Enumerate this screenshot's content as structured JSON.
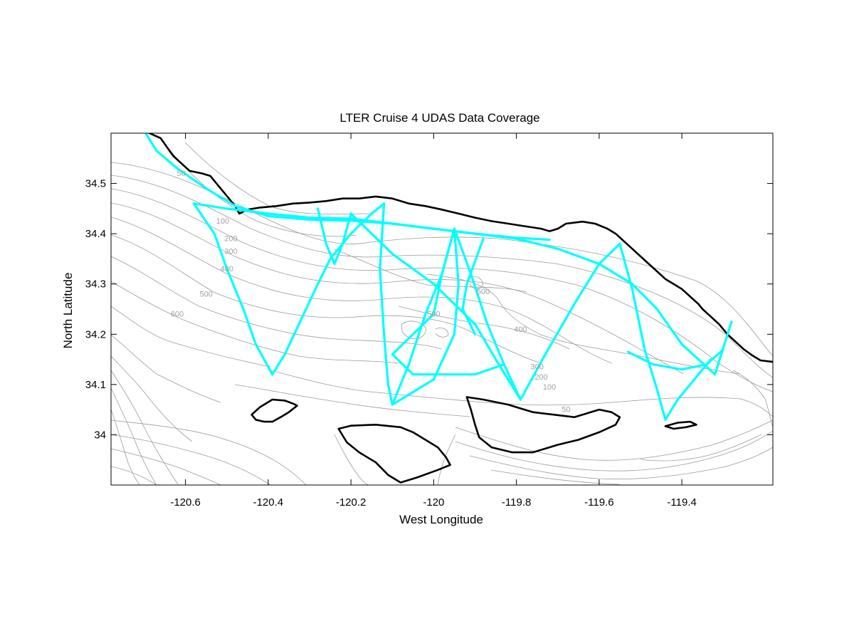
{
  "chart_data": {
    "type": "map",
    "title": "LTER Cruise 4 UDAS Data Coverage",
    "xlabel": "West Longitude",
    "ylabel": "North Latitude",
    "xlim": [
      -120.78,
      -119.18
    ],
    "ylim": [
      33.9,
      34.6
    ],
    "x_ticks": [
      {
        "value": -120.6,
        "label": "-120.6"
      },
      {
        "value": -120.4,
        "label": "-120.4"
      },
      {
        "value": -120.2,
        "label": "-120.2"
      },
      {
        "value": -120.0,
        "label": "-120"
      },
      {
        "value": -119.8,
        "label": "-119.8"
      },
      {
        "value": -119.6,
        "label": "-119.6"
      },
      {
        "value": -119.4,
        "label": "-119.4"
      }
    ],
    "y_ticks": [
      {
        "value": 34.0,
        "label": "34"
      },
      {
        "value": 34.1,
        "label": "34.1"
      },
      {
        "value": 34.2,
        "label": "34.2"
      },
      {
        "value": 34.3,
        "label": "34.3"
      },
      {
        "value": 34.4,
        "label": "34.4"
      },
      {
        "value": 34.5,
        "label": "34.5"
      }
    ],
    "contour_labels": [
      {
        "text": "50",
        "lon": -120.61,
        "lat": 34.515
      },
      {
        "text": "100",
        "lon": -120.51,
        "lat": 34.42
      },
      {
        "text": "200",
        "lon": -120.49,
        "lat": 34.385
      },
      {
        "text": "300",
        "lon": -120.49,
        "lat": 34.36
      },
      {
        "text": "400",
        "lon": -120.5,
        "lat": 34.325
      },
      {
        "text": "500",
        "lon": -120.55,
        "lat": 34.275
      },
      {
        "text": "600",
        "lon": -120.62,
        "lat": 34.235
      },
      {
        "text": "500",
        "lon": -119.88,
        "lat": 34.28
      },
      {
        "text": "500",
        "lon": -120.0,
        "lat": 34.235
      },
      {
        "text": "400",
        "lon": -119.79,
        "lat": 34.205
      },
      {
        "text": "300",
        "lon": -119.75,
        "lat": 34.13
      },
      {
        "text": "200",
        "lon": -119.74,
        "lat": 34.11
      },
      {
        "text": "100",
        "lon": -119.72,
        "lat": 34.09
      },
      {
        "text": "50",
        "lon": -119.68,
        "lat": 34.045
      }
    ],
    "coastline": [
      [
        -120.7,
        34.605
      ],
      [
        -120.66,
        34.59
      ],
      [
        -120.63,
        34.555
      ],
      [
        -120.61,
        34.54
      ],
      [
        -120.59,
        34.525
      ],
      [
        -120.56,
        34.52
      ],
      [
        -120.54,
        34.515
      ],
      [
        -120.52,
        34.495
      ],
      [
        -120.5,
        34.475
      ],
      [
        -120.48,
        34.455
      ],
      [
        -120.47,
        34.44
      ],
      [
        -120.45,
        34.448
      ],
      [
        -120.42,
        34.452
      ],
      [
        -120.38,
        34.455
      ],
      [
        -120.34,
        34.46
      ],
      [
        -120.3,
        34.462
      ],
      [
        -120.26,
        34.465
      ],
      [
        -120.22,
        34.47
      ],
      [
        -120.18,
        34.47
      ],
      [
        -120.14,
        34.474
      ],
      [
        -120.1,
        34.47
      ],
      [
        -120.06,
        34.46
      ],
      [
        -120.02,
        34.455
      ],
      [
        -119.98,
        34.448
      ],
      [
        -119.94,
        34.44
      ],
      [
        -119.9,
        34.432
      ],
      [
        -119.86,
        34.425
      ],
      [
        -119.82,
        34.42
      ],
      [
        -119.78,
        34.415
      ],
      [
        -119.74,
        34.41
      ],
      [
        -119.72,
        34.405
      ],
      [
        -119.7,
        34.41
      ],
      [
        -119.68,
        34.42
      ],
      [
        -119.64,
        34.424
      ],
      [
        -119.61,
        34.42
      ],
      [
        -119.58,
        34.41
      ],
      [
        -119.56,
        34.4
      ],
      [
        -119.54,
        34.385
      ],
      [
        -119.52,
        34.37
      ],
      [
        -119.5,
        34.355
      ],
      [
        -119.48,
        34.34
      ],
      [
        -119.46,
        34.325
      ],
      [
        -119.44,
        34.31
      ],
      [
        -119.42,
        34.3
      ],
      [
        -119.4,
        34.29
      ],
      [
        -119.38,
        34.275
      ],
      [
        -119.36,
        34.26
      ],
      [
        -119.35,
        34.25
      ],
      [
        -119.33,
        34.235
      ],
      [
        -119.31,
        34.22
      ],
      [
        -119.29,
        34.2
      ],
      [
        -119.27,
        34.185
      ],
      [
        -119.25,
        34.17
      ],
      [
        -119.23,
        34.158
      ],
      [
        -119.21,
        34.148
      ],
      [
        -119.18,
        34.145
      ]
    ],
    "islands": [
      [
        [
          -120.44,
          34.04
        ],
        [
          -120.42,
          34.055
        ],
        [
          -120.39,
          34.07
        ],
        [
          -120.36,
          34.068
        ],
        [
          -120.34,
          34.062
        ],
        [
          -120.33,
          34.058
        ],
        [
          -120.35,
          34.045
        ],
        [
          -120.37,
          34.035
        ],
        [
          -120.39,
          34.026
        ],
        [
          -120.41,
          34.026
        ],
        [
          -120.43,
          34.03
        ],
        [
          -120.44,
          34.04
        ]
      ],
      [
        [
          -120.23,
          34.012
        ],
        [
          -120.2,
          34.018
        ],
        [
          -120.14,
          34.02
        ],
        [
          -120.08,
          34.015
        ],
        [
          -120.05,
          34.005
        ],
        [
          -120.02,
          33.99
        ],
        [
          -119.99,
          33.975
        ],
        [
          -119.97,
          33.955
        ],
        [
          -119.96,
          33.94
        ],
        [
          -119.99,
          33.93
        ],
        [
          -120.04,
          33.915
        ],
        [
          -120.08,
          33.905
        ],
        [
          -120.11,
          33.92
        ],
        [
          -120.14,
          33.945
        ],
        [
          -120.18,
          33.965
        ],
        [
          -120.21,
          33.985
        ],
        [
          -120.23,
          34.012
        ]
      ],
      [
        [
          -119.92,
          34.075
        ],
        [
          -119.88,
          34.07
        ],
        [
          -119.82,
          34.06
        ],
        [
          -119.76,
          34.045
        ],
        [
          -119.71,
          34.04
        ],
        [
          -119.66,
          34.035
        ],
        [
          -119.6,
          34.05
        ],
        [
          -119.57,
          34.045
        ],
        [
          -119.55,
          34.035
        ],
        [
          -119.56,
          34.02
        ],
        [
          -119.6,
          34.005
        ],
        [
          -119.65,
          33.99
        ],
        [
          -119.7,
          33.98
        ],
        [
          -119.76,
          33.965
        ],
        [
          -119.81,
          33.965
        ],
        [
          -119.86,
          33.975
        ],
        [
          -119.89,
          33.995
        ],
        [
          -119.9,
          34.02
        ],
        [
          -119.91,
          34.05
        ],
        [
          -119.92,
          34.075
        ]
      ],
      [
        [
          -119.44,
          34.017
        ],
        [
          -119.42,
          34.012
        ],
        [
          -119.39,
          34.015
        ],
        [
          -119.365,
          34.02
        ],
        [
          -119.38,
          34.026
        ],
        [
          -119.41,
          34.024
        ],
        [
          -119.44,
          34.017
        ]
      ]
    ],
    "ship_tracks": [
      [
        [
          -120.7,
          34.605
        ],
        [
          -120.67,
          34.565
        ],
        [
          -120.62,
          34.53
        ],
        [
          -120.55,
          34.49
        ],
        [
          -120.48,
          34.455
        ],
        [
          -120.4,
          34.435
        ],
        [
          -120.3,
          34.428
        ],
        [
          -120.2,
          34.426
        ],
        [
          -120.1,
          34.42
        ],
        [
          -120.0,
          34.41
        ],
        [
          -119.9,
          34.4
        ],
        [
          -119.8,
          34.392
        ],
        [
          -119.72,
          34.388
        ]
      ],
      [
        [
          -120.58,
          34.46
        ],
        [
          -120.5,
          34.45
        ],
        [
          -120.4,
          34.44
        ],
        [
          -120.3,
          34.432
        ],
        [
          -120.2,
          34.43
        ],
        [
          -120.1,
          34.42
        ],
        [
          -120.0,
          34.41
        ],
        [
          -119.9,
          34.4
        ],
        [
          -119.8,
          34.39
        ],
        [
          -119.7,
          34.37
        ],
        [
          -119.6,
          34.34
        ],
        [
          -119.52,
          34.3
        ],
        [
          -119.46,
          34.25
        ],
        [
          -119.4,
          34.18
        ],
        [
          -119.36,
          34.15
        ],
        [
          -119.32,
          34.12
        ],
        [
          -119.28,
          34.225
        ]
      ],
      [
        [
          -120.58,
          34.46
        ],
        [
          -120.53,
          34.4
        ],
        [
          -120.5,
          34.33
        ],
        [
          -120.46,
          34.25
        ],
        [
          -120.43,
          34.18
        ],
        [
          -120.39,
          34.12
        ],
        [
          -120.36,
          34.16
        ],
        [
          -120.32,
          34.23
        ],
        [
          -120.28,
          34.3
        ],
        [
          -120.25,
          34.35
        ],
        [
          -120.2,
          34.4
        ],
        [
          -120.15,
          34.44
        ],
        [
          -120.12,
          34.46
        ]
      ],
      [
        [
          -120.28,
          34.45
        ],
        [
          -120.26,
          34.38
        ],
        [
          -120.24,
          34.34
        ],
        [
          -120.22,
          34.38
        ],
        [
          -120.2,
          34.44
        ]
      ],
      [
        [
          -120.12,
          34.46
        ],
        [
          -120.13,
          34.33
        ],
        [
          -120.12,
          34.2
        ],
        [
          -120.11,
          34.1
        ],
        [
          -120.1,
          34.06
        ],
        [
          -120.0,
          34.11
        ],
        [
          -119.95,
          34.2
        ],
        [
          -119.94,
          34.3
        ],
        [
          -119.95,
          34.41
        ]
      ],
      [
        [
          -120.1,
          34.06
        ],
        [
          -120.06,
          34.14
        ],
        [
          -120.02,
          34.24
        ],
        [
          -119.98,
          34.32
        ],
        [
          -119.95,
          34.41
        ],
        [
          -119.91,
          34.32
        ],
        [
          -119.87,
          34.22
        ],
        [
          -119.83,
          34.14
        ],
        [
          -119.79,
          34.07
        ]
      ],
      [
        [
          -119.95,
          34.41
        ],
        [
          -119.98,
          34.32
        ],
        [
          -120.0,
          34.24
        ],
        [
          -120.1,
          34.16
        ],
        [
          -120.05,
          34.12
        ],
        [
          -119.9,
          34.12
        ],
        [
          -119.83,
          34.14
        ]
      ],
      [
        [
          -120.2,
          34.44
        ],
        [
          -120.1,
          34.36
        ],
        [
          -120.0,
          34.3
        ],
        [
          -119.9,
          34.22
        ],
        [
          -119.85,
          34.15
        ],
        [
          -119.79,
          34.07
        ],
        [
          -119.73,
          34.16
        ],
        [
          -119.66,
          34.26
        ],
        [
          -119.6,
          34.34
        ],
        [
          -119.55,
          34.38
        ],
        [
          -119.52,
          34.29
        ],
        [
          -119.49,
          34.17
        ],
        [
          -119.46,
          34.09
        ],
        [
          -119.44,
          34.03
        ],
        [
          -119.41,
          34.07
        ],
        [
          -119.37,
          34.11
        ],
        [
          -119.33,
          34.15
        ]
      ],
      [
        [
          -119.53,
          34.165
        ],
        [
          -119.47,
          34.14
        ],
        [
          -119.4,
          34.13
        ],
        [
          -119.34,
          34.14
        ],
        [
          -119.3,
          34.17
        ]
      ],
      [
        [
          -119.88,
          34.39
        ],
        [
          -119.92,
          34.3
        ],
        [
          -119.93,
          34.25
        ],
        [
          -119.9,
          34.2
        ]
      ]
    ]
  }
}
